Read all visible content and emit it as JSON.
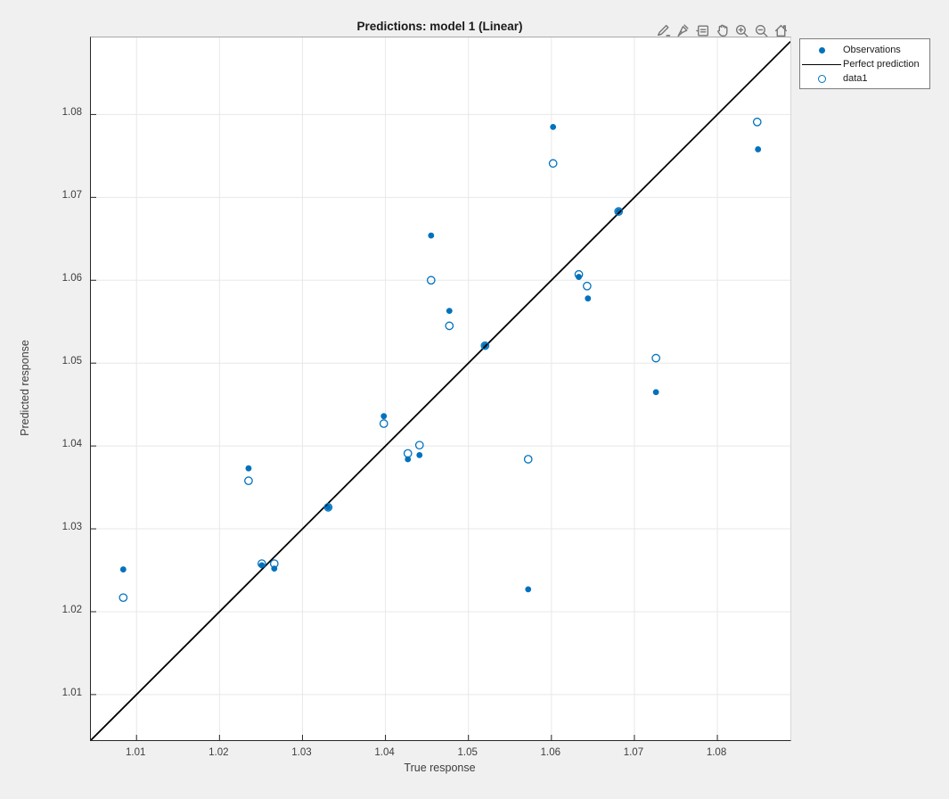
{
  "figure": {
    "title": "Predictions: model 1 (Linear)",
    "background_color": "#f0f0f0",
    "accent_color": "#0072BD"
  },
  "toolbar": {
    "icons": [
      {
        "name": "export-icon"
      },
      {
        "name": "brush-icon"
      },
      {
        "name": "datatip-icon"
      },
      {
        "name": "pan-icon"
      },
      {
        "name": "zoom-in-icon"
      },
      {
        "name": "zoom-out-icon"
      },
      {
        "name": "restore-view-icon"
      }
    ]
  },
  "legend": {
    "items": [
      {
        "label": "Observations",
        "marker": "filled-dot",
        "color": "#0072BD"
      },
      {
        "label": "Perfect prediction",
        "marker": "line",
        "color": "#000000"
      },
      {
        "label": "data1",
        "marker": "open-circle",
        "color": "#0072BD"
      }
    ]
  },
  "chart_data": {
    "type": "scatter",
    "title": "Predictions: model 1 (Linear)",
    "xlabel": "True response",
    "ylabel": "Predicted response",
    "xlim": [
      1.0045,
      1.0888
    ],
    "ylim": [
      1.0045,
      1.0893
    ],
    "xticks": [
      1.01,
      1.02,
      1.03,
      1.04,
      1.05,
      1.06,
      1.07,
      1.08
    ],
    "yticks": [
      1.01,
      1.02,
      1.03,
      1.04,
      1.05,
      1.06,
      1.07,
      1.08
    ],
    "grid": true,
    "gridline_color": "#e8e8e8",
    "legend_position": "outside-top-right",
    "series": [
      {
        "name": "Observations",
        "type": "scatter",
        "marker": "filled-circle",
        "color": "#0072BD",
        "points": [
          [
            1.0084,
            1.0251
          ],
          [
            1.0235,
            1.0373
          ],
          [
            1.0251,
            1.0256
          ],
          [
            1.0266,
            1.0252
          ],
          [
            1.0331,
            1.0326
          ],
          [
            1.0398,
            1.0436
          ],
          [
            1.0427,
            1.0384
          ],
          [
            1.0441,
            1.0389
          ],
          [
            1.0455,
            1.0654
          ],
          [
            1.0477,
            1.0563
          ],
          [
            1.052,
            1.0521
          ],
          [
            1.0572,
            1.0227
          ],
          [
            1.0602,
            1.0785
          ],
          [
            1.0633,
            1.0604
          ],
          [
            1.0644,
            1.0578
          ],
          [
            1.0681,
            1.0683
          ],
          [
            1.0726,
            1.0465
          ],
          [
            1.0849,
            1.0758
          ]
        ]
      },
      {
        "name": "Perfect prediction",
        "type": "line",
        "color": "#000000",
        "points": [
          [
            1.0045,
            1.0045
          ],
          [
            1.0888,
            1.0888
          ]
        ]
      },
      {
        "name": "data1",
        "type": "scatter",
        "marker": "open-circle",
        "color": "#0072BD",
        "points": [
          [
            1.0084,
            1.0217
          ],
          [
            1.0235,
            1.0358
          ],
          [
            1.0251,
            1.0258
          ],
          [
            1.0266,
            1.0258
          ],
          [
            1.0331,
            1.0326
          ],
          [
            1.0398,
            1.0427
          ],
          [
            1.0427,
            1.0391
          ],
          [
            1.0441,
            1.0401
          ],
          [
            1.0455,
            1.06
          ],
          [
            1.0477,
            1.0545
          ],
          [
            1.052,
            1.0521
          ],
          [
            1.0572,
            1.0384
          ],
          [
            1.0602,
            1.0741
          ],
          [
            1.0633,
            1.0607
          ],
          [
            1.0643,
            1.0593
          ],
          [
            1.0681,
            1.0683
          ],
          [
            1.0726,
            1.0506
          ],
          [
            1.0848,
            1.0791
          ]
        ]
      }
    ]
  }
}
